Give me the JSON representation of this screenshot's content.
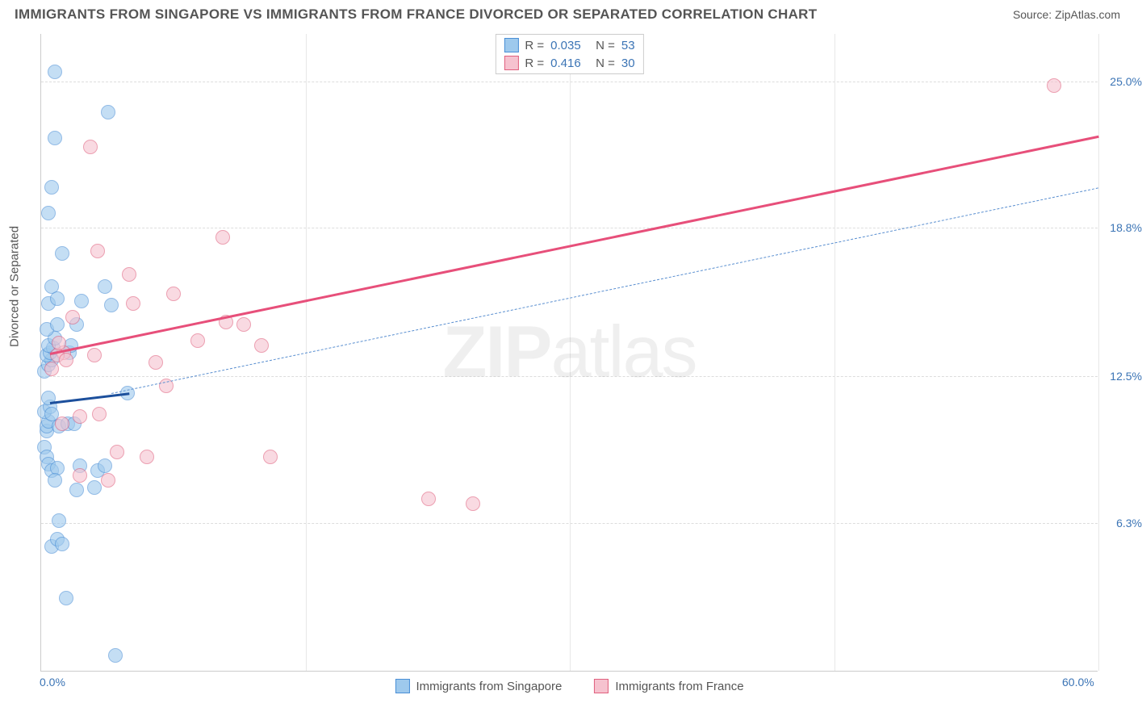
{
  "title": "IMMIGRANTS FROM SINGAPORE VS IMMIGRANTS FROM FRANCE DIVORCED OR SEPARATED CORRELATION CHART",
  "source": "Source: ZipAtlas.com",
  "ylabel": "Divorced or Separated",
  "watermark_a": "ZIP",
  "watermark_b": "atlas",
  "colors": {
    "blue_fill": "#9ec9ed",
    "blue_stroke": "#4a8fd6",
    "pink_fill": "#f6c2cf",
    "pink_stroke": "#e0607e",
    "blue_text": "#3b74b5",
    "pink_line": "#e74f7a",
    "blue_line": "#1c4f9c",
    "blue_dash": "#5a8fd0",
    "grid": "#dddddd",
    "axis": "#cccccc"
  },
  "legend_top": {
    "rows": [
      {
        "series": "blue",
        "r_label": "R =",
        "r_val": "0.035",
        "n_label": "N =",
        "n_val": "53"
      },
      {
        "series": "pink",
        "r_label": "R =",
        "r_val": "0.416",
        "n_label": "N =",
        "n_val": "30"
      }
    ]
  },
  "legend_bottom": [
    {
      "series": "blue",
      "label": "Immigrants from Singapore"
    },
    {
      "series": "pink",
      "label": "Immigrants from France"
    }
  ],
  "xlim": [
    0,
    60
  ],
  "ylim": [
    0,
    27
  ],
  "y_gridlines": [
    6.3,
    12.5,
    18.8,
    25.0
  ],
  "y_tick_labels": [
    "6.3%",
    "12.5%",
    "18.8%",
    "25.0%"
  ],
  "x_gridlines": [
    15,
    30,
    45,
    60
  ],
  "x_ticks": [
    {
      "v": 0,
      "label": "0.0%"
    },
    {
      "v": 60,
      "label": "60.0%"
    }
  ],
  "series": {
    "blue": {
      "points": [
        [
          0.3,
          10.2
        ],
        [
          0.3,
          10.4
        ],
        [
          0.4,
          10.6
        ],
        [
          0.2,
          11.0
        ],
        [
          0.5,
          11.2
        ],
        [
          0.4,
          11.6
        ],
        [
          0.2,
          12.7
        ],
        [
          0.4,
          13.0
        ],
        [
          0.6,
          13.2
        ],
        [
          0.3,
          13.4
        ],
        [
          0.5,
          13.5
        ],
        [
          0.7,
          13.7
        ],
        [
          0.4,
          13.8
        ],
        [
          0.8,
          14.1
        ],
        [
          0.3,
          14.5
        ],
        [
          0.9,
          14.7
        ],
        [
          0.4,
          15.6
        ],
        [
          0.6,
          16.3
        ],
        [
          0.9,
          15.8
        ],
        [
          0.2,
          9.5
        ],
        [
          0.3,
          9.1
        ],
        [
          0.4,
          8.8
        ],
        [
          0.6,
          8.5
        ],
        [
          0.9,
          8.6
        ],
        [
          1.0,
          10.4
        ],
        [
          1.5,
          10.5
        ],
        [
          1.9,
          10.5
        ],
        [
          2.2,
          8.7
        ],
        [
          3.2,
          8.5
        ],
        [
          3.6,
          8.7
        ],
        [
          0.6,
          5.3
        ],
        [
          0.9,
          5.6
        ],
        [
          1.2,
          5.4
        ],
        [
          1.0,
          6.4
        ],
        [
          2.0,
          7.7
        ],
        [
          3.0,
          7.8
        ],
        [
          1.4,
          3.1
        ],
        [
          4.2,
          0.7
        ],
        [
          0.8,
          25.4
        ],
        [
          3.8,
          23.7
        ],
        [
          0.8,
          22.6
        ],
        [
          0.6,
          20.5
        ],
        [
          0.4,
          19.4
        ],
        [
          1.2,
          17.7
        ],
        [
          2.0,
          14.7
        ],
        [
          2.3,
          15.7
        ],
        [
          3.6,
          16.3
        ],
        [
          4.0,
          15.5
        ],
        [
          4.9,
          11.8
        ],
        [
          1.6,
          13.5
        ],
        [
          1.7,
          13.8
        ],
        [
          0.6,
          10.9
        ],
        [
          0.8,
          8.1
        ]
      ],
      "trend_solid": {
        "x1": 0.5,
        "y1": 11.4,
        "x2": 5.0,
        "y2": 11.8
      },
      "trend_dashed": {
        "x1": 4.0,
        "y1": 11.8,
        "x2": 60.0,
        "y2": 20.5
      }
    },
    "pink": {
      "points": [
        [
          1.3,
          13.5
        ],
        [
          2.2,
          10.8
        ],
        [
          3.3,
          10.9
        ],
        [
          3.0,
          13.4
        ],
        [
          6.5,
          13.1
        ],
        [
          5.2,
          15.6
        ],
        [
          7.5,
          16.0
        ],
        [
          8.9,
          14.0
        ],
        [
          10.5,
          14.8
        ],
        [
          11.5,
          14.7
        ],
        [
          10.3,
          18.4
        ],
        [
          3.2,
          17.8
        ],
        [
          5.0,
          16.8
        ],
        [
          2.8,
          22.2
        ],
        [
          4.3,
          9.3
        ],
        [
          6.0,
          9.1
        ],
        [
          13.0,
          9.1
        ],
        [
          22.0,
          7.3
        ],
        [
          24.5,
          7.1
        ],
        [
          57.5,
          24.8
        ],
        [
          0.6,
          12.8
        ],
        [
          0.9,
          13.4
        ],
        [
          1.4,
          13.2
        ],
        [
          1.2,
          10.5
        ],
        [
          2.2,
          8.3
        ],
        [
          7.1,
          12.1
        ],
        [
          1.0,
          13.9
        ],
        [
          3.8,
          8.1
        ],
        [
          12.5,
          13.8
        ],
        [
          1.8,
          15.0
        ]
      ],
      "trend_solid": {
        "x1": 0.5,
        "y1": 13.5,
        "x2": 60.0,
        "y2": 22.7
      }
    }
  }
}
